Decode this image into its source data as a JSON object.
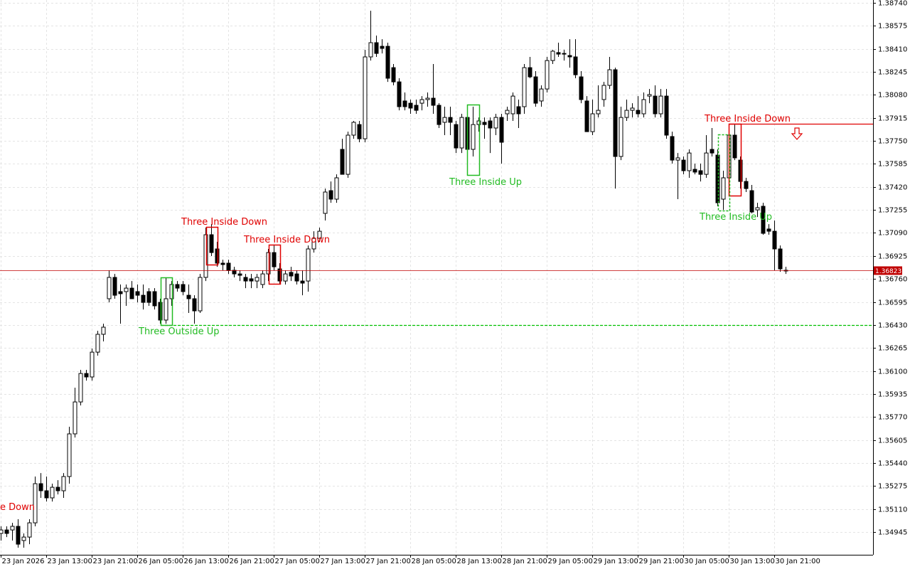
{
  "chart_data": {
    "type": "candlestick",
    "categories": [
      "23 Jan 2026",
      null,
      null,
      null,
      null,
      null,
      null,
      null,
      "23 Jan 13:00",
      null,
      null,
      null,
      null,
      null,
      null,
      null,
      "23 Jan 21:00",
      null,
      null,
      null,
      null,
      null,
      null,
      null,
      "26 Jan 05:00",
      null,
      null,
      null,
      null,
      null,
      null,
      null,
      "26 Jan 13:00",
      null,
      null,
      null,
      null,
      null,
      null,
      null,
      "26 Jan 21:00",
      null,
      null,
      null,
      null,
      null,
      null,
      null,
      "27 Jan 05:00",
      null,
      null,
      null,
      null,
      null,
      null,
      null,
      "27 Jan 13:00",
      null,
      null,
      null,
      null,
      null,
      null,
      null,
      "27 Jan 21:00",
      null,
      null,
      null,
      null,
      null,
      null,
      null,
      "28 Jan 05:00",
      null,
      null,
      null,
      null,
      null,
      null,
      null,
      "28 Jan 13:00",
      null,
      null,
      null,
      null,
      null,
      null,
      null,
      "28 Jan 21:00",
      null,
      null,
      null,
      null,
      null,
      null,
      null,
      "29 Jan 05:00",
      null,
      null,
      null,
      null,
      null,
      null,
      null,
      "29 Jan 13:00",
      null,
      null,
      null,
      null,
      null,
      null,
      null,
      "29 Jan 21:00",
      null,
      null,
      null,
      null,
      null,
      null,
      null,
      "30 Jan 05:00",
      null,
      null,
      null,
      null,
      null,
      null,
      null,
      "30 Jan 13:00",
      null,
      null,
      null,
      null,
      null,
      null,
      null,
      "30 Jan 21:00",
      null,
      null
    ],
    "open": [
      1.34935,
      1.3496,
      1.3496,
      1.34986,
      1.34884,
      1.34909,
      1.35011,
      1.35292,
      1.35241,
      1.3519,
      1.35266,
      1.35241,
      1.35343,
      1.35649,
      1.35878,
      1.36082,
      1.36057,
      1.36235,
      1.36363,
      1.36618,
      1.36771,
      1.36669,
      1.36669,
      1.36694,
      1.36669,
      1.36643,
      1.36669,
      1.36669,
      1.36592,
      1.36465,
      1.36618,
      1.3672,
      1.3672,
      1.36643,
      1.36618,
      1.36531,
      1.36771,
      1.37077,
      1.36975,
      1.36873,
      1.36873,
      1.36822,
      1.36796,
      1.36771,
      1.36761,
      1.36745,
      1.3672,
      1.36796,
      1.36949,
      1.36832,
      1.36745,
      1.36807,
      1.36796,
      1.36745,
      1.36745,
      1.36975,
      1.37051,
      1.3723,
      1.37393,
      1.37332,
      1.37689,
      1.3751,
      1.37791,
      1.37867,
      1.37765,
      1.38352,
      1.38454,
      1.38428,
      1.38428,
      1.38275,
      1.38173,
      1.38036,
      1.3802,
      1.38005,
      1.3802,
      1.38046,
      1.38056,
      1.38005,
      1.37883,
      1.37918,
      1.37867,
      1.37699,
      1.37918,
      1.37689,
      1.37867,
      1.37883,
      1.37893,
      1.37842,
      1.37918,
      1.37944,
      1.37944,
      1.37995,
      1.37995,
      1.38275,
      1.38209,
      1.38036,
      1.38122,
      1.38326,
      1.38383,
      1.38372,
      1.38362,
      1.38352,
      1.38209,
      1.38036,
      1.37816,
      1.37944,
      1.38046,
      1.38148,
      1.3826,
      1.37638,
      1.37918,
      1.37969,
      1.37969,
      1.37944,
      1.38071,
      1.38071,
      1.37944,
      1.38071,
      1.37781,
      1.37612,
      1.37612,
      1.37536,
      1.37546,
      1.37536,
      1.3751,
      1.37689,
      1.37648,
      1.37332,
      1.37485,
      1.37791,
      1.37612,
      1.37459,
      1.37393,
      1.37255,
      1.37281,
      1.37118,
      1.37102,
      1.36975,
      1.36822
    ],
    "high": [
      1.34986,
      1.34986,
      1.35011,
      1.35037,
      1.34935,
      1.35037,
      1.35343,
      1.35368,
      1.35343,
      1.35292,
      1.35317,
      1.35368,
      1.357,
      1.3598,
      1.36108,
      1.36108,
      1.36261,
      1.36388,
      1.36439,
      1.36822,
      1.36796,
      1.3672,
      1.3672,
      1.36745,
      1.3672,
      1.3672,
      1.36694,
      1.36694,
      1.36618,
      1.36771,
      1.36745,
      1.36745,
      1.36745,
      1.3672,
      1.36643,
      1.36796,
      1.37128,
      1.37153,
      1.37026,
      1.36898,
      1.36898,
      1.36847,
      1.36822,
      1.36796,
      1.36796,
      1.36796,
      1.36822,
      1.36975,
      1.37,
      1.36873,
      1.36822,
      1.36847,
      1.36822,
      1.36822,
      1.37,
      1.37102,
      1.37128,
      1.37408,
      1.37459,
      1.3751,
      1.37765,
      1.37816,
      1.37893,
      1.37893,
      1.38403,
      1.38683,
      1.38505,
      1.38479,
      1.38454,
      1.38301,
      1.38199,
      1.38097,
      1.38046,
      1.38046,
      1.38071,
      1.38097,
      1.38301,
      1.3802,
      1.37995,
      1.37995,
      1.37893,
      1.37944,
      1.37944,
      1.37995,
      1.37918,
      1.37918,
      1.37918,
      1.37944,
      1.37944,
      1.37995,
      1.38097,
      1.38046,
      1.38301,
      1.38352,
      1.3825,
      1.38148,
      1.38352,
      1.38403,
      1.38454,
      1.38403,
      1.38479,
      1.38479,
      1.3825,
      1.38071,
      1.38046,
      1.38148,
      1.38173,
      1.38352,
      1.38275,
      1.37995,
      1.38046,
      1.3802,
      1.38071,
      1.38097,
      1.38122,
      1.38148,
      1.38122,
      1.38122,
      1.37816,
      1.37663,
      1.37638,
      1.37689,
      1.37587,
      1.37587,
      1.37791,
      1.37842,
      1.37689,
      1.37536,
      1.37842,
      1.37867,
      1.37638,
      1.37485,
      1.37434,
      1.37306,
      1.37306,
      1.37153,
      1.37179,
      1.37,
      1.36847
    ],
    "low": [
      1.34884,
      1.34909,
      1.34884,
      1.34833,
      1.34833,
      1.34858,
      1.34986,
      1.3519,
      1.35164,
      1.35164,
      1.35215,
      1.3519,
      1.35292,
      1.35623,
      1.35853,
      1.36031,
      1.36031,
      1.3621,
      1.36312,
      1.36592,
      1.36618,
      1.36439,
      1.36567,
      1.36618,
      1.36592,
      1.36541,
      1.36567,
      1.36541,
      1.36439,
      1.36439,
      1.36567,
      1.36669,
      1.36643,
      1.36516,
      1.36439,
      1.36516,
      1.36745,
      1.36924,
      1.36847,
      1.36822,
      1.36796,
      1.36771,
      1.36745,
      1.36694,
      1.36694,
      1.36694,
      1.36694,
      1.36745,
      1.36822,
      1.3672,
      1.3672,
      1.36745,
      1.3672,
      1.36643,
      1.36669,
      1.36949,
      1.37026,
      1.37179,
      1.37306,
      1.37306,
      1.3751,
      1.37485,
      1.37765,
      1.3774,
      1.3774,
      1.38326,
      1.38352,
      1.38377,
      1.38173,
      1.38148,
      1.37969,
      1.37969,
      1.37944,
      1.37944,
      1.37969,
      1.37995,
      1.37944,
      1.37842,
      1.37791,
      1.37791,
      1.37663,
      1.37663,
      1.37663,
      1.37638,
      1.37816,
      1.37765,
      1.37663,
      1.37791,
      1.37587,
      1.37893,
      1.37893,
      1.37842,
      1.37944,
      1.38199,
      1.37995,
      1.37995,
      1.38097,
      1.38301,
      1.38352,
      1.38326,
      1.38275,
      1.38199,
      1.3802,
      1.37816,
      1.37791,
      1.37918,
      1.37995,
      1.38122,
      1.37408,
      1.37612,
      1.37893,
      1.37918,
      1.37918,
      1.37918,
      1.3802,
      1.37918,
      1.37918,
      1.37765,
      1.37587,
      1.37332,
      1.3751,
      1.37485,
      1.3751,
      1.37459,
      1.37485,
      1.37638,
      1.37281,
      1.37255,
      1.37459,
      1.37612,
      1.37408,
      1.37383,
      1.3723,
      1.37204,
      1.37077,
      1.37077,
      1.36822,
      1.36811,
      1.36796
    ],
    "close": [
      1.3496,
      1.34935,
      1.34986,
      1.34858,
      1.34909,
      1.35011,
      1.35292,
      1.35241,
      1.3519,
      1.35266,
      1.35241,
      1.35343,
      1.35649,
      1.35878,
      1.36082,
      1.36057,
      1.36235,
      1.36363,
      1.36414,
      1.36771,
      1.36643,
      1.36654,
      1.36694,
      1.36618,
      1.36643,
      1.36592,
      1.36592,
      1.36567,
      1.36465,
      1.36618,
      1.3672,
      1.36694,
      1.36669,
      1.36618,
      1.36531,
      1.36771,
      1.37077,
      1.36949,
      1.36873,
      1.36863,
      1.36822,
      1.36796,
      1.36786,
      1.36745,
      1.36745,
      1.36771,
      1.36796,
      1.36949,
      1.36847,
      1.36745,
      1.36796,
      1.36781,
      1.36745,
      1.3673,
      1.36975,
      1.37051,
      1.37102,
      1.37383,
      1.37332,
      1.37485,
      1.3751,
      1.37791,
      1.37883,
      1.37765,
      1.38352,
      1.38454,
      1.38377,
      1.38413,
      1.38199,
      1.38173,
      1.37995,
      1.37995,
      1.37985,
      1.37969,
      1.38046,
      1.38056,
      1.38005,
      1.37867,
      1.37918,
      1.37883,
      1.37699,
      1.37918,
      1.37689,
      1.37867,
      1.37893,
      1.37867,
      1.37842,
      1.37918,
      1.3774,
      1.37969,
      1.38071,
      1.37944,
      1.38275,
      1.38209,
      1.3802,
      1.38122,
      1.38326,
      1.38393,
      1.38372,
      1.38377,
      1.38352,
      1.38224,
      1.38046,
      1.37816,
      1.37944,
      1.37969,
      1.38148,
      1.3826,
      1.37638,
      1.37918,
      1.37969,
      1.37985,
      1.37944,
      1.38046,
      1.38082,
      1.37944,
      1.38071,
      1.37791,
      1.37612,
      1.37628,
      1.37536,
      1.37663,
      1.37526,
      1.3751,
      1.37663,
      1.37663,
      1.37306,
      1.37485,
      1.37791,
      1.37628,
      1.37459,
      1.37408,
      1.3724,
      1.37271,
      1.37087,
      1.37102,
      1.36975,
      1.36832,
      1.36822
    ],
    "ylim": [
      1.34782,
      1.3876
    ],
    "yticks": [
      {
        "value": 1.3874,
        "label": "1.38740"
      },
      {
        "value": 1.38575,
        "label": "1.38575"
      },
      {
        "value": 1.3841,
        "label": "1.38410"
      },
      {
        "value": 1.38245,
        "label": "1.38245"
      },
      {
        "value": 1.3808,
        "label": "1.38080"
      },
      {
        "value": 1.37915,
        "label": "1.37915"
      },
      {
        "value": 1.3775,
        "label": "1.37750"
      },
      {
        "value": 1.37585,
        "label": "1.37585"
      },
      {
        "value": 1.3742,
        "label": "1.37420"
      },
      {
        "value": 1.37255,
        "label": "1.37255"
      },
      {
        "value": 1.3709,
        "label": "1.37090"
      },
      {
        "value": 1.36925,
        "label": "1.36925"
      },
      {
        "value": 1.3676,
        "label": "1.36760"
      },
      {
        "value": 1.36595,
        "label": "1.36595"
      },
      {
        "value": 1.3643,
        "label": "1.36430"
      },
      {
        "value": 1.36265,
        "label": "1.36265"
      },
      {
        "value": 1.361,
        "label": "1.36100"
      },
      {
        "value": 1.35935,
        "label": "1.35935"
      },
      {
        "value": 1.3577,
        "label": "1.35770"
      },
      {
        "value": 1.35605,
        "label": "1.35605"
      },
      {
        "value": 1.3544,
        "label": "1.35440"
      },
      {
        "value": 1.35275,
        "label": "1.35275"
      },
      {
        "value": 1.3511,
        "label": "1.35110"
      },
      {
        "value": 1.34945,
        "label": "1.34945"
      }
    ],
    "grid": true,
    "price_line": 1.36823,
    "price_color": "#c00000",
    "levels": [
      {
        "value": 1.3643,
        "color": "#00c000",
        "dash": true
      },
      {
        "value": 1.37873,
        "color": "#e00000",
        "dash": false
      }
    ],
    "annotations": [
      {
        "text": "e Down",
        "color": "#e00000"
      },
      {
        "text": "Three Outside Up",
        "color": "#22bb22"
      },
      {
        "text": "Three Inside Down",
        "color": "#e00000"
      },
      {
        "text": "Three Inside Down",
        "color": "#e00000"
      },
      {
        "text": "Three Inside Up",
        "color": "#22bb22"
      },
      {
        "text": "Three Inside Down",
        "color": "#e00000"
      },
      {
        "text": "Three Inside Up",
        "color": "#22bb22"
      }
    ]
  }
}
